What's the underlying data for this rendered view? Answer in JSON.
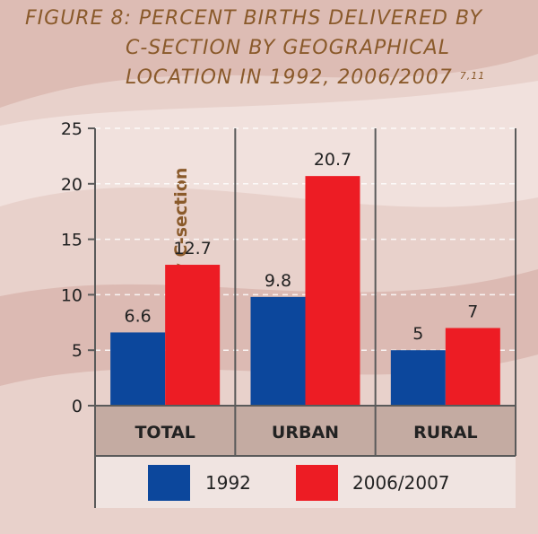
{
  "title": {
    "line1": "FIGURE 8: PERCENT BIRTHS DELIVERED BY",
    "line2": "C-SECTION BY GEOGRAPHICAL",
    "line3": "LOCATION IN 1992, 2006/2007",
    "refs": "7,11"
  },
  "colors": {
    "series_1992": "#0c479c",
    "series_2006": "#ed1c24",
    "text": "#8a5a2b",
    "category_band": "#c4aba2",
    "legend_band": "#f0e4e1",
    "axis": "#5a5a5a"
  },
  "chart_data": {
    "type": "bar",
    "title": "FIGURE 8: PERCENT BIRTHS DELIVERED BY C-SECTION BY GEOGRAPHICAL LOCATION IN 1992, 2006/2007",
    "categories": [
      "TOTAL",
      "URBAN",
      "RURAL"
    ],
    "series": [
      {
        "name": "1992",
        "values": [
          6.6,
          9.8,
          5
        ]
      },
      {
        "name": "2006/2007",
        "values": [
          12.7,
          20.7,
          7
        ]
      }
    ],
    "value_labels": [
      [
        "6.6",
        "9.8",
        "5"
      ],
      [
        "12.7",
        "20.7",
        "7"
      ]
    ],
    "ylabel": "% of births delivered by C-section",
    "xlabel": "",
    "ylim": [
      0,
      25
    ],
    "yticks": [
      0,
      5,
      10,
      15,
      20,
      25
    ],
    "grid": true,
    "legend_position": "bottom"
  }
}
